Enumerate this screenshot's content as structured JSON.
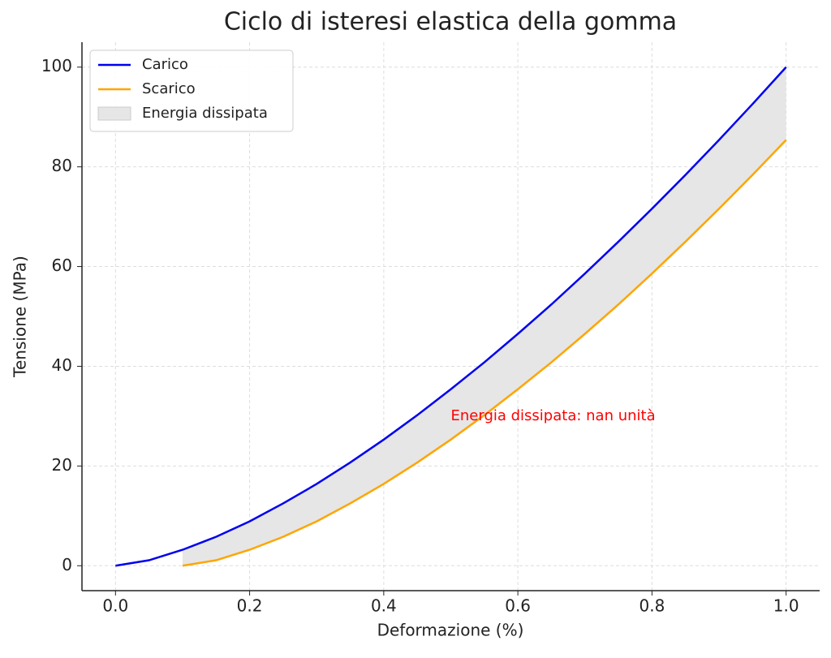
{
  "chart_data": {
    "type": "line",
    "title": "Ciclo di isteresi elastica della gomma",
    "x_label": "Deformazione (%)",
    "y_label": "Tensione (MPa)",
    "x": [
      0,
      0.05,
      0.1,
      0.15,
      0.2,
      0.25,
      0.3,
      0.35,
      0.4,
      0.45,
      0.5,
      0.55,
      0.6,
      0.65,
      0.7,
      0.75,
      0.8,
      0.85,
      0.9,
      0.95,
      1.0
    ],
    "series": [
      {
        "name": "Carico",
        "color": "#0000ee",
        "values": [
          0,
          1.1,
          3.2,
          5.8,
          8.9,
          12.5,
          16.4,
          20.7,
          25.3,
          30.2,
          35.4,
          40.8,
          46.5,
          52.4,
          58.6,
          65.0,
          71.6,
          78.4,
          85.4,
          92.6,
          100
        ]
      },
      {
        "name": "Scarico",
        "color": "#ffa500",
        "values": [
          null,
          null,
          0,
          1.1,
          3.2,
          5.8,
          8.9,
          12.5,
          16.4,
          20.7,
          25.3,
          30.2,
          35.4,
          40.8,
          46.5,
          52.4,
          58.6,
          65.0,
          71.6,
          78.4,
          85.4
        ]
      }
    ],
    "fill": {
      "name": "Energia dissipata",
      "color": "#e6e6e6"
    },
    "annotation": {
      "text": "Energia dissipata: nan unità",
      "x": 0.5,
      "y": 30,
      "color": "#ff0000"
    },
    "xlim": [
      -0.05,
      1.05
    ],
    "ylim": [
      -5,
      105
    ],
    "xticks": [
      {
        "value": 0,
        "label": "0.0"
      },
      0.2,
      0.4,
      0.6,
      0.8,
      {
        "value": 1,
        "label": "1.0"
      }
    ],
    "yticks": [
      0,
      20,
      40,
      60,
      80,
      100
    ],
    "grid": true,
    "legend": "upper left"
  }
}
